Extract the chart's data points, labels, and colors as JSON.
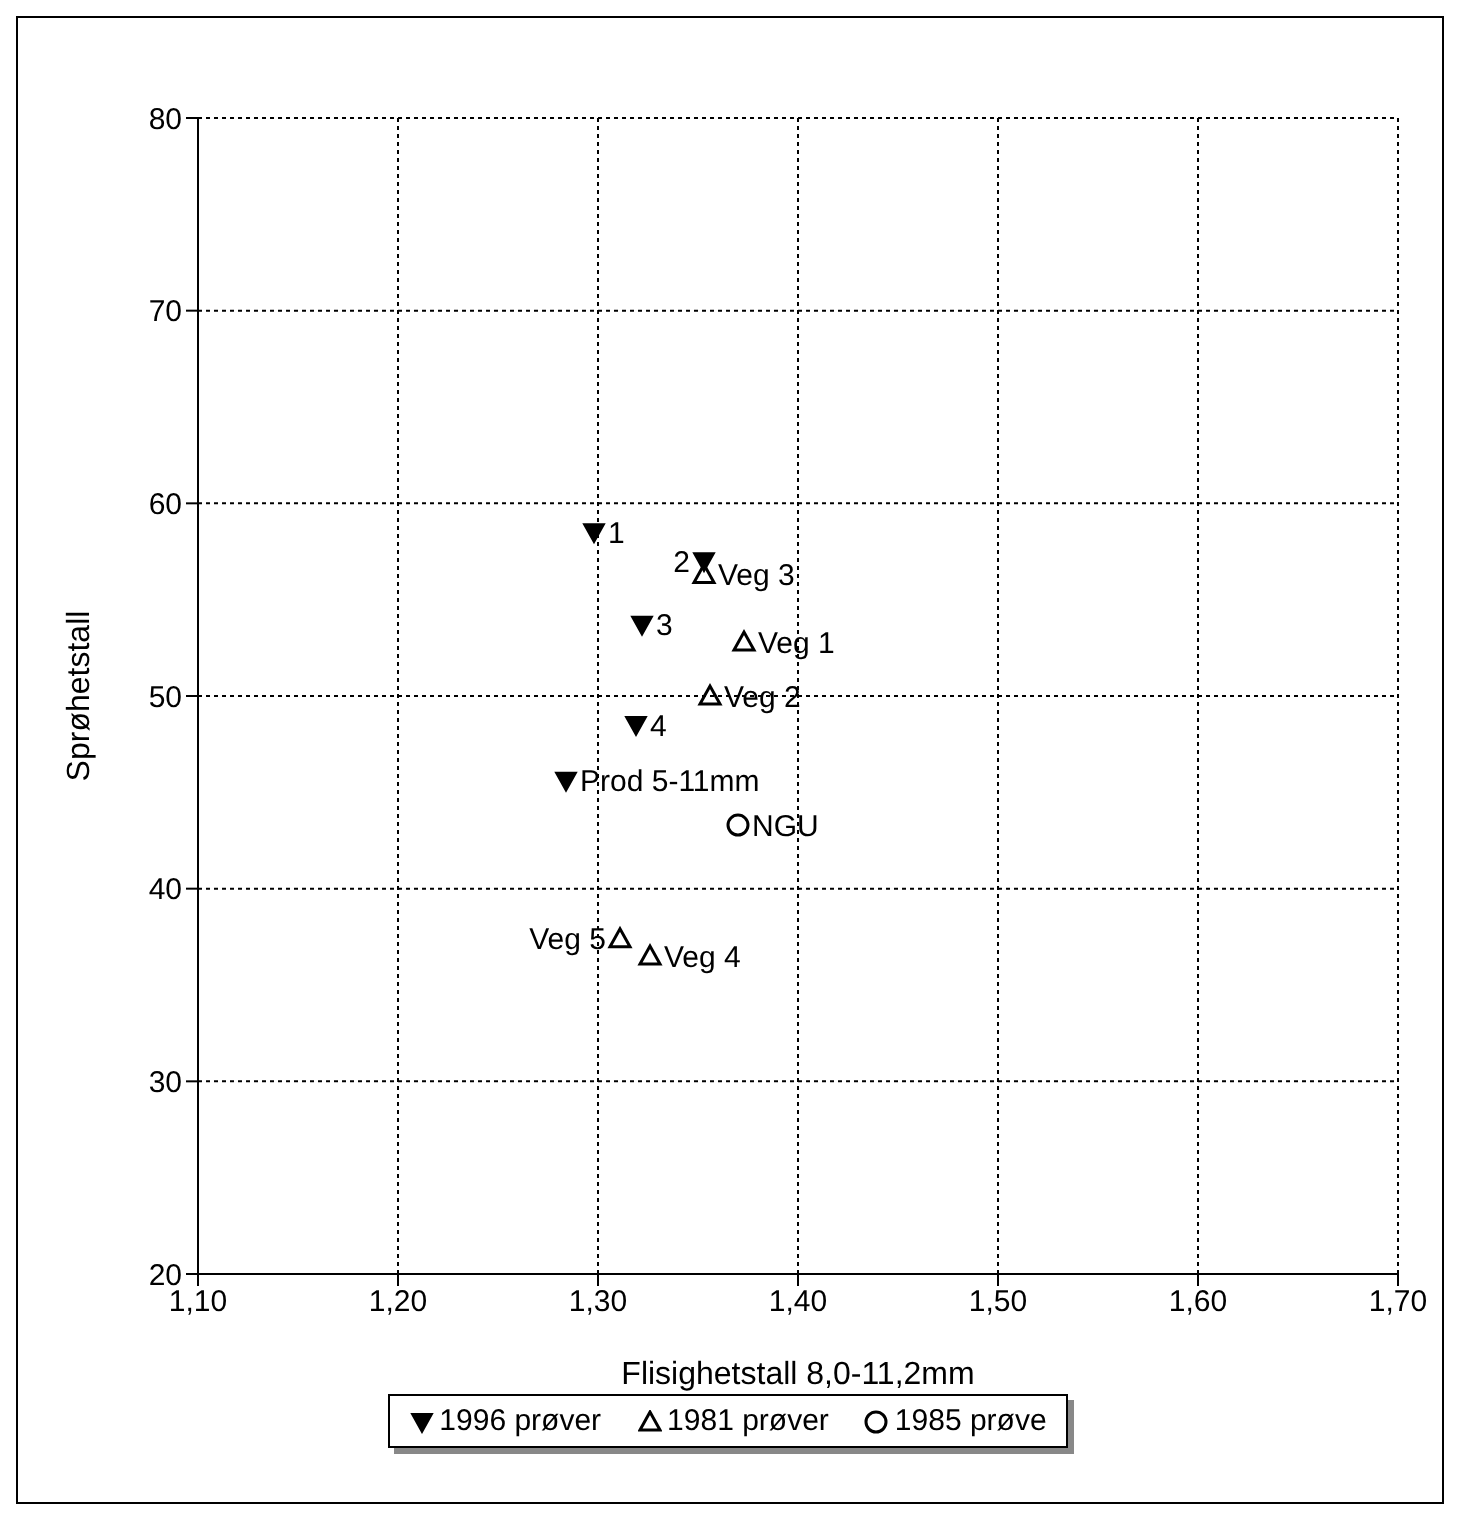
{
  "chart_data": {
    "type": "scatter",
    "xlabel": "Flisighetstall 8,0-11,2mm",
    "ylabel": "Sprøhetstall",
    "xlim": [
      1.1,
      1.7
    ],
    "xticks": [
      {
        "value": 1.1,
        "label": "1,10"
      },
      {
        "value": 1.2,
        "label": "1,20"
      },
      {
        "value": 1.3,
        "label": "1,30"
      },
      {
        "value": 1.4,
        "label": "1,40"
      },
      {
        "value": 1.5,
        "label": "1,50"
      },
      {
        "value": 1.6,
        "label": "1,60"
      },
      {
        "value": 1.7,
        "label": "1,70"
      }
    ],
    "ylim": [
      20,
      80
    ],
    "yticks": [
      20,
      30,
      40,
      50,
      60,
      70,
      80
    ],
    "grid": true,
    "legend": "bottom",
    "series": [
      {
        "name": "1996 prøver",
        "color": "#000000",
        "marker": "triangle-down",
        "x": [
          1.298,
          1.353,
          1.322,
          1.319,
          1.284
        ],
        "values": [
          58.5,
          57.0,
          53.7,
          48.5,
          45.6
        ]
      },
      {
        "name": "1981 prøver",
        "color": "#000000",
        "marker": "triangle",
        "x": [
          1.353,
          1.373,
          1.356,
          1.311,
          1.326
        ],
        "values": [
          56.3,
          52.8,
          50.0,
          37.4,
          36.5
        ]
      },
      {
        "name": "1985 prøve",
        "color": "#000000",
        "marker": "circle",
        "x": [
          1.37
        ],
        "values": [
          43.3
        ]
      }
    ],
    "annotations": [
      {
        "text": "1",
        "x": 1.298,
        "y": 58.5
      },
      {
        "text": "2",
        "x": 1.353,
        "y": 57.0
      },
      {
        "text": "3",
        "x": 1.322,
        "y": 53.7
      },
      {
        "text": "4",
        "x": 1.319,
        "y": 48.5
      },
      {
        "text": "Prod 5-11mm",
        "x": 1.284,
        "y": 45.6
      },
      {
        "text": "Veg 3",
        "x": 1.353,
        "y": 56.3
      },
      {
        "text": "Veg 1",
        "x": 1.373,
        "y": 52.8
      },
      {
        "text": "Veg 2",
        "x": 1.356,
        "y": 50.0
      },
      {
        "text": "Veg 5",
        "x": 1.311,
        "y": 37.4
      },
      {
        "text": "Veg 4",
        "x": 1.326,
        "y": 36.5
      },
      {
        "text": "NGU",
        "x": 1.37,
        "y": 43.3
      }
    ]
  }
}
